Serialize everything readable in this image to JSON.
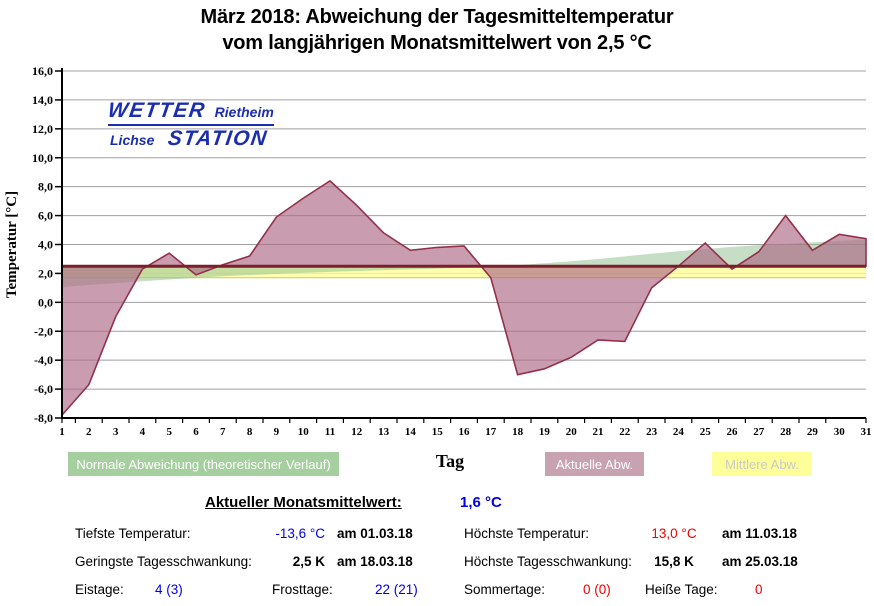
{
  "title": {
    "line1": "März 2018: Abweichung der Tagesmitteltemperatur",
    "line2": "vom langjährigen Monatsmittelwert von 2,5 °C"
  },
  "logo": {
    "wetter": "WETTER",
    "rietheim": "Rietheim",
    "lichse": "Lichse",
    "station": "STATION",
    "color": "#1c2eb0"
  },
  "chart_data": {
    "type": "area",
    "xlabel": "Tag",
    "ylabel": "Temperatur [°C]",
    "ylim": [
      -8,
      16
    ],
    "yticks": [
      16,
      14,
      12,
      10,
      8,
      6,
      4,
      2,
      0,
      -2,
      -4,
      -6,
      -8
    ],
    "ytick_labels": [
      "16,0",
      "14,0",
      "12,0",
      "10,0",
      "8,0",
      "6,0",
      "4,0",
      "2,0",
      "0,0",
      "-2,0",
      "-4,0",
      "-6,0",
      "-8,0"
    ],
    "x": [
      1,
      2,
      3,
      4,
      5,
      6,
      7,
      8,
      9,
      10,
      11,
      12,
      13,
      14,
      15,
      16,
      17,
      18,
      19,
      20,
      21,
      22,
      23,
      24,
      25,
      26,
      27,
      28,
      29,
      30,
      31
    ],
    "baseline": 2.5,
    "baseline_color": "#7c1f2d",
    "grid_color": "#a0a0a0",
    "series": [
      {
        "name": "Normale Abweichung (theoretischer Verlauf)",
        "type": "area",
        "color": "#a5cf9e",
        "values": [
          1.05,
          1.2,
          1.33,
          1.46,
          1.58,
          1.69,
          1.8,
          1.89,
          1.97,
          2.04,
          2.11,
          2.17,
          2.23,
          2.28,
          2.33,
          2.39,
          2.47,
          2.57,
          2.7,
          2.84,
          3.0,
          3.18,
          3.36,
          3.53,
          3.69,
          3.84,
          3.96,
          4.06,
          4.15,
          4.25,
          4.35
        ]
      },
      {
        "name": "Aktuelle Abw.",
        "type": "area",
        "color": "#c9a2b2",
        "stroke": "#93314a",
        "values": [
          -7.8,
          -5.7,
          -1.0,
          2.3,
          3.4,
          1.9,
          2.6,
          3.2,
          5.9,
          7.2,
          8.4,
          6.7,
          4.8,
          3.6,
          3.8,
          3.9,
          1.7,
          -5.0,
          -4.6,
          -3.8,
          -2.6,
          -2.7,
          1.0,
          2.5,
          4.1,
          2.3,
          3.5,
          6.0,
          3.6,
          4.7,
          4.4
        ]
      },
      {
        "name": "Mittlere Abw.",
        "type": "band",
        "color": "#ffff99",
        "from": 1.7,
        "to": 2.5
      }
    ]
  },
  "stats": {
    "header_label": "Aktueller Monatsmittelwert:",
    "header_value": "1,6 °C",
    "rows": [
      {
        "label": "Tiefste Temperatur:",
        "value": "-13,6 °C",
        "value_color": "#0000e6",
        "date": "am 01.03.18"
      },
      {
        "label": "Höchste Temperatur:",
        "value": "13,0 °C",
        "value_color": "#f00000",
        "date": "am 11.03.18"
      },
      {
        "label": "Geringste Tagesschwankung:",
        "value": "2,5 K",
        "value_color": "#000000",
        "date": "am 18.03.18"
      },
      {
        "label": "Höchste Tagesschwankung:",
        "value": "15,8 K",
        "value_color": "#000000",
        "date": "am 25.03.18"
      }
    ],
    "day_counts": [
      {
        "label": "Eistage:",
        "value": "4 (3)",
        "value_color": "#0000e6"
      },
      {
        "label": "Frosttage:",
        "value": "22 (21)",
        "value_color": "#0000e6"
      },
      {
        "label": "Sommertage:",
        "value": "0 (0)",
        "value_color": "#f00000"
      },
      {
        "label": "Heiße Tage:",
        "value": "0",
        "value_color": "#f00000"
      }
    ]
  }
}
